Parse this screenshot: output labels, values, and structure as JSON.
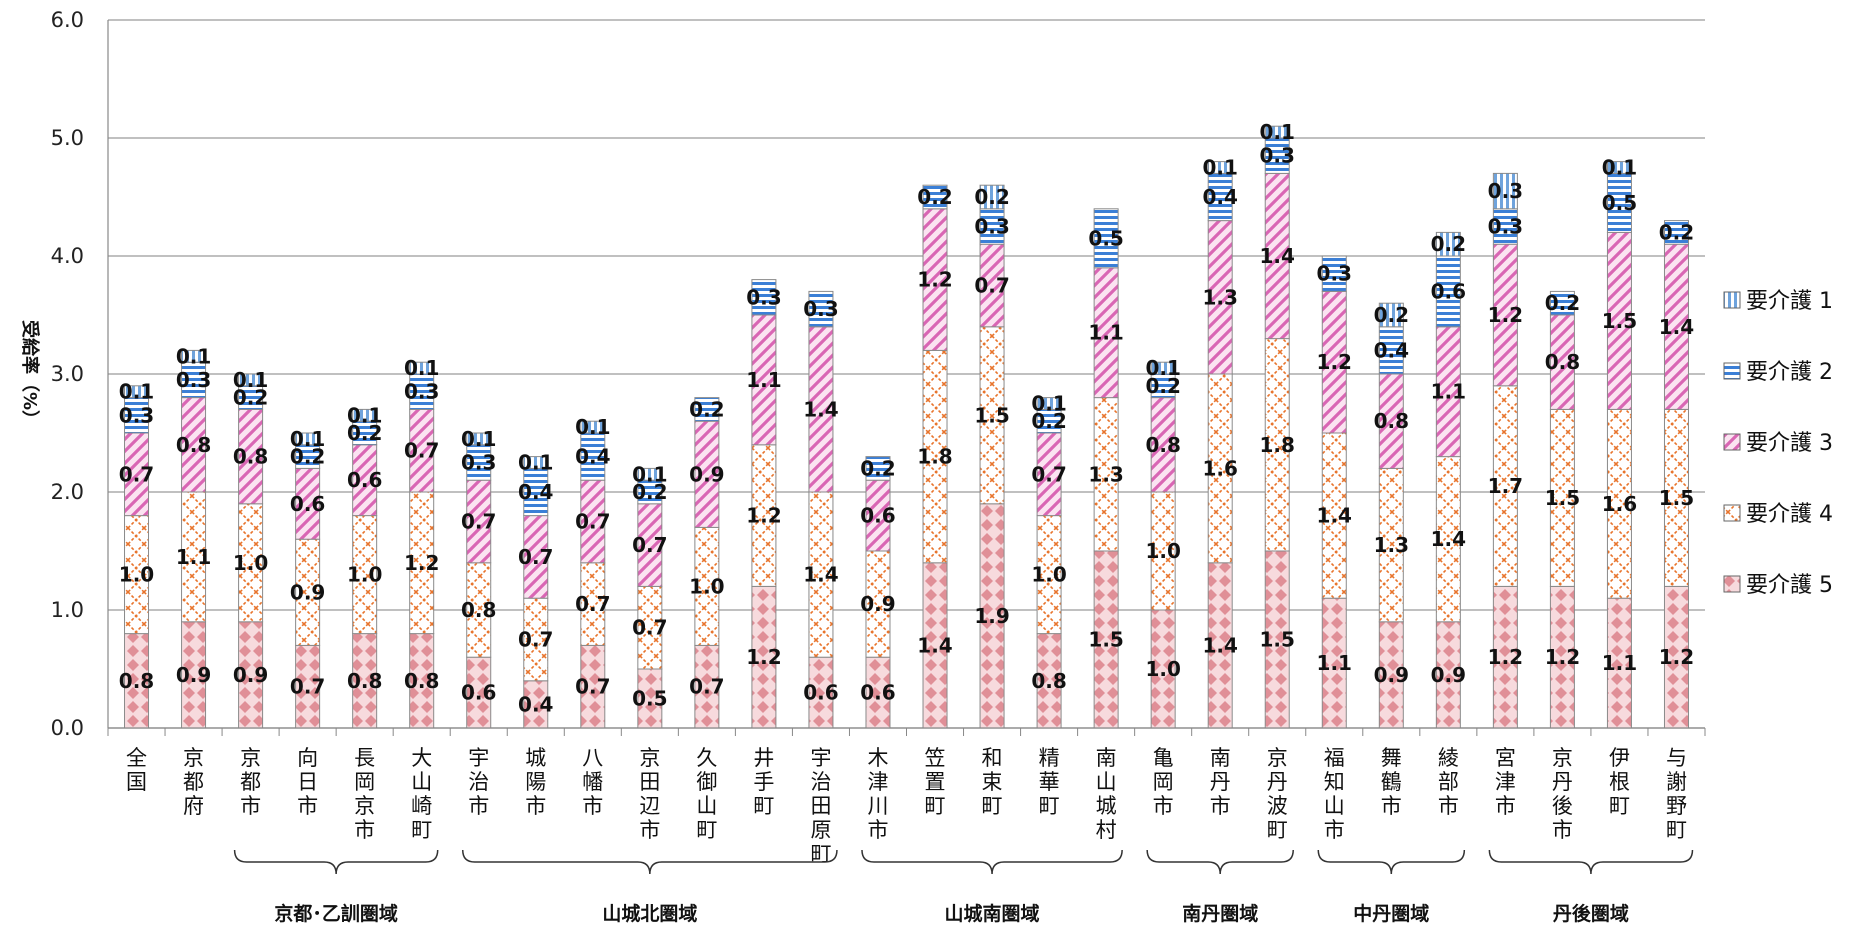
{
  "chart_data": {
    "type": "bar",
    "stacked": true,
    "ylabel": "受給率（%）",
    "ylim": [
      0,
      6
    ],
    "yticks": [
      "0.0",
      "1.0",
      "2.0",
      "3.0",
      "4.0",
      "5.0",
      "6.0"
    ],
    "grid": true,
    "legend_position": "right",
    "categories": [
      "全国",
      "京都府",
      "京都市",
      "向日市",
      "長岡京市",
      "大山崎町",
      "宇治市",
      "城陽市",
      "八幡市",
      "京田辺市",
      "久御山町",
      "井手町",
      "宇治田原町",
      "木津川市",
      "笠置町",
      "和束町",
      "精華町",
      "南山城村",
      "亀岡市",
      "南丹市",
      "京丹波町",
      "福知山市",
      "舞鶴市",
      "綾部市",
      "宮津市",
      "京丹後市",
      "伊根町",
      "与謝野町"
    ],
    "series": [
      {
        "name": "要介護 5",
        "color": "#e8a0a6",
        "values": [
          0.8,
          0.9,
          0.9,
          0.7,
          0.8,
          0.8,
          0.6,
          0.4,
          0.7,
          0.5,
          0.7,
          1.2,
          0.6,
          0.6,
          1.4,
          1.9,
          0.8,
          1.5,
          1.0,
          1.4,
          1.5,
          1.1,
          0.9,
          0.9,
          1.2,
          1.2,
          1.1,
          1.2
        ]
      },
      {
        "name": "要介護 4",
        "color": "#e8742c",
        "values": [
          1.0,
          1.1,
          1.0,
          0.9,
          1.0,
          1.2,
          0.8,
          0.7,
          0.7,
          0.7,
          1.0,
          1.2,
          1.4,
          0.9,
          1.8,
          1.5,
          1.0,
          1.3,
          1.0,
          1.6,
          1.8,
          1.4,
          1.3,
          1.4,
          1.7,
          1.5,
          1.6,
          1.5
        ]
      },
      {
        "name": "要介護 3",
        "color": "#d966b4",
        "values": [
          0.7,
          0.8,
          0.8,
          0.6,
          0.6,
          0.7,
          0.7,
          0.7,
          0.7,
          0.7,
          0.9,
          1.1,
          1.4,
          0.6,
          1.2,
          0.7,
          0.7,
          1.1,
          0.8,
          1.3,
          1.4,
          1.2,
          0.8,
          1.1,
          1.2,
          0.8,
          1.5,
          1.4
        ]
      },
      {
        "name": "要介護 2",
        "color": "#3b7fd6",
        "values": [
          0.3,
          0.3,
          0.2,
          0.2,
          0.2,
          0.3,
          0.3,
          0.4,
          0.4,
          0.2,
          0.2,
          0.3,
          0.3,
          0.2,
          0.2,
          0.3,
          0.2,
          0.5,
          0.2,
          0.4,
          0.3,
          0.3,
          0.4,
          0.6,
          0.3,
          0.2,
          0.5,
          0.2
        ]
      },
      {
        "name": "要介護 1",
        "color": "#6fa3dc",
        "values": [
          0.1,
          0.1,
          0.1,
          0.1,
          0.1,
          0.1,
          0.1,
          0.1,
          0.1,
          0.1,
          null,
          null,
          null,
          null,
          null,
          0.2,
          0.1,
          null,
          0.1,
          0.1,
          0.1,
          null,
          0.2,
          0.2,
          0.3,
          null,
          0.1,
          null
        ]
      }
    ],
    "regions": [
      {
        "label": "京都･乙訓圏域",
        "from": 2,
        "to": 5
      },
      {
        "label": "山城北圏域",
        "from": 6,
        "to": 12
      },
      {
        "label": "山城南圏域",
        "from": 13,
        "to": 17
      },
      {
        "label": "南丹圏域",
        "from": 18,
        "to": 20
      },
      {
        "label": "中丹圏域",
        "from": 21,
        "to": 23
      },
      {
        "label": "丹後圏域",
        "from": 24,
        "to": 27
      }
    ]
  }
}
